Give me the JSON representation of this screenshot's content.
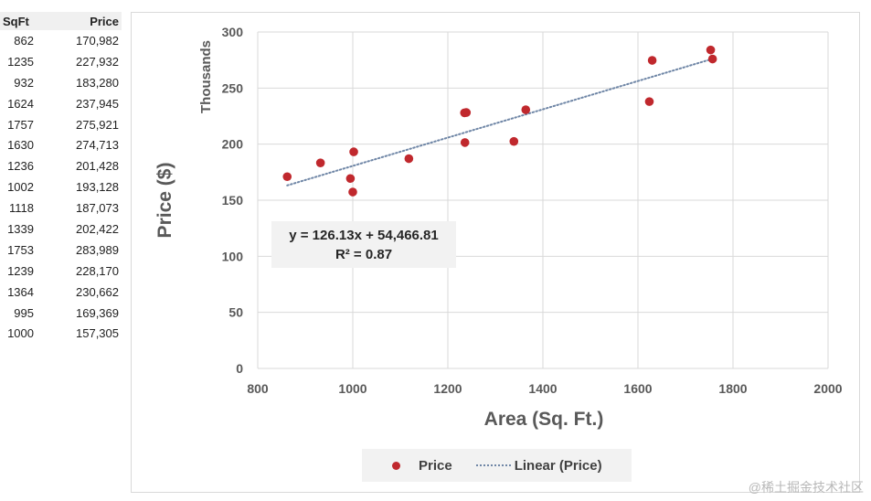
{
  "table": {
    "headers": [
      "SqFt",
      "Price"
    ],
    "rows": [
      [
        "862",
        "170,982"
      ],
      [
        "1235",
        "227,932"
      ],
      [
        "932",
        "183,280"
      ],
      [
        "1624",
        "237,945"
      ],
      [
        "1757",
        "275,921"
      ],
      [
        "1630",
        "274,713"
      ],
      [
        "1236",
        "201,428"
      ],
      [
        "1002",
        "193,128"
      ],
      [
        "1118",
        "187,073"
      ],
      [
        "1339",
        "202,422"
      ],
      [
        "1753",
        "283,989"
      ],
      [
        "1239",
        "228,170"
      ],
      [
        "1364",
        "230,662"
      ],
      [
        "995",
        "169,369"
      ],
      [
        "1000",
        "157,305"
      ]
    ]
  },
  "chart_data": {
    "type": "scatter",
    "xlabel": "Area (Sq. Ft.)",
    "ylabel": "Price ($)",
    "yunit_label": "Thousands",
    "xlim": [
      800,
      2000
    ],
    "ylim": [
      0,
      300
    ],
    "xticks": [
      800,
      1000,
      1200,
      1400,
      1600,
      1800,
      2000
    ],
    "yticks": [
      0,
      50,
      100,
      150,
      200,
      250,
      300
    ],
    "grid": true,
    "legend_position": "bottom",
    "series": [
      {
        "name": "Price",
        "color": "#c0282d",
        "points": [
          [
            862,
            170.982
          ],
          [
            1235,
            227.932
          ],
          [
            932,
            183.28
          ],
          [
            1624,
            237.945
          ],
          [
            1757,
            275.921
          ],
          [
            1630,
            274.713
          ],
          [
            1236,
            201.428
          ],
          [
            1002,
            193.128
          ],
          [
            1118,
            187.073
          ],
          [
            1339,
            202.422
          ],
          [
            1753,
            283.989
          ],
          [
            1239,
            228.17
          ],
          [
            1364,
            230.662
          ],
          [
            995,
            169.369
          ],
          [
            1000,
            157.305
          ]
        ]
      }
    ],
    "trendline": {
      "name": "Linear  (Price)",
      "color": "#6f86a6",
      "slope": 126.13,
      "intercept": 54466.81,
      "x_range": [
        862,
        1757
      ],
      "equation": "y = 126.13x + 54,466.81",
      "r2": "R² = 0.87"
    }
  },
  "watermark": "@稀土掘金技术社区"
}
